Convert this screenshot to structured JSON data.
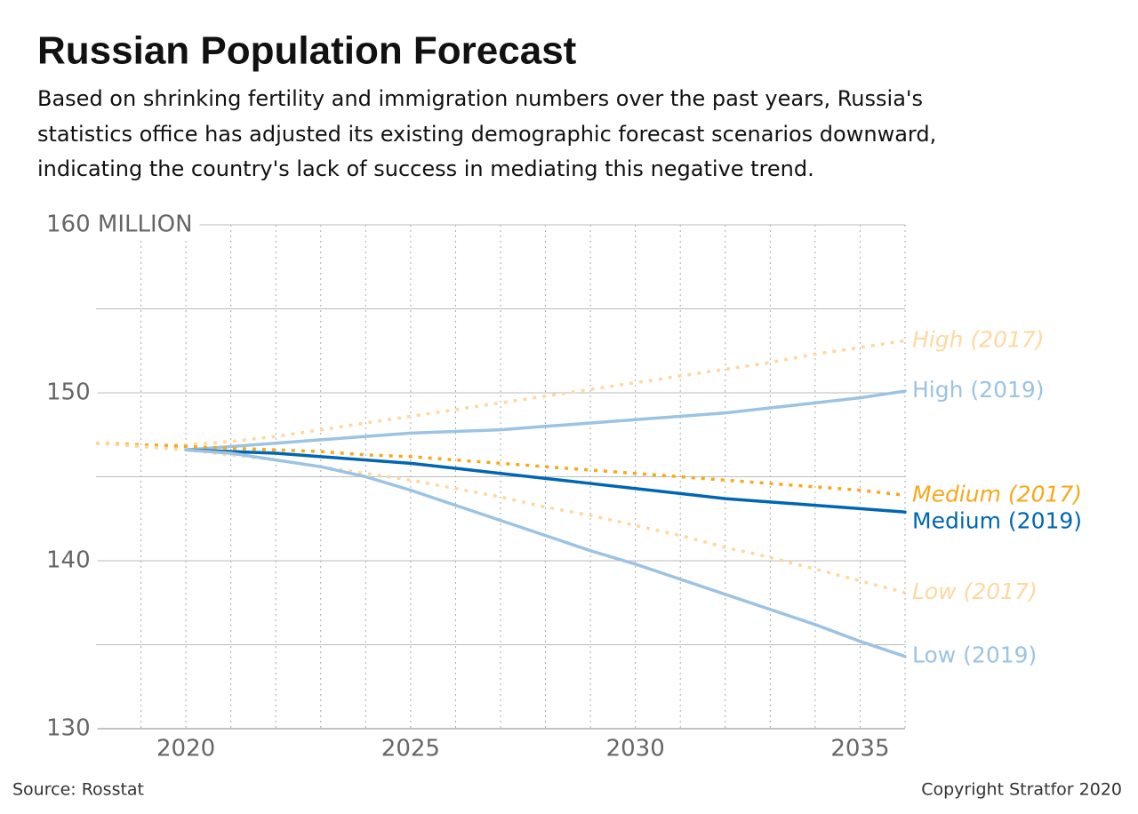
{
  "chart_data": {
    "type": "line",
    "title": "Russian Population Forecast",
    "subtitle": [
      "Based on shrinking fertility and immigration numbers over the past years, Russia's",
      "statistics office has adjusted its existing demographic forecast scenarios downward,",
      "indicating the country's lack of success in mediating this negative trend."
    ],
    "source": "Source: Rosstat",
    "copyright": "Copyright Stratfor 2020",
    "x": [
      2018,
      2019,
      2020,
      2021,
      2022,
      2023,
      2024,
      2025,
      2026,
      2027,
      2028,
      2029,
      2030,
      2031,
      2032,
      2033,
      2034,
      2035,
      2036
    ],
    "xlim": [
      2018,
      2036
    ],
    "xticks": [
      2020,
      2025,
      2030,
      2035
    ],
    "x_minor_ticks": [
      2019,
      2020,
      2021,
      2022,
      2023,
      2024,
      2025,
      2026,
      2027,
      2028,
      2029,
      2030,
      2031,
      2032,
      2033,
      2034,
      2035,
      2036
    ],
    "ylim": [
      130,
      160
    ],
    "yticks": [
      130,
      140,
      150,
      {
        "value": 160,
        "label": "160 MILLION"
      }
    ],
    "y_minor_ticks": [
      135,
      145,
      155
    ],
    "grid": true,
    "series": [
      {
        "name": "High (2017)",
        "color": "#fdd9a0",
        "dashed": true,
        "italic": true,
        "values": [
          147.0,
          146.9,
          146.9,
          147.1,
          147.4,
          147.8,
          148.2,
          148.6,
          149.0,
          149.4,
          149.8,
          150.2,
          150.6,
          151.0,
          151.4,
          151.8,
          152.3,
          152.7,
          153.1
        ]
      },
      {
        "name": "High (2019)",
        "color": "#9cc3e4",
        "dashed": false,
        "italic": false,
        "values": [
          null,
          null,
          146.6,
          146.8,
          147.0,
          147.2,
          147.4,
          147.6,
          147.7,
          147.8,
          148.0,
          148.2,
          148.4,
          148.6,
          148.8,
          149.1,
          149.4,
          149.7,
          150.1
        ]
      },
      {
        "name": "Medium (2017)",
        "color": "#f7a81b",
        "dashed": true,
        "italic": true,
        "values": [
          147.0,
          146.9,
          146.8,
          146.7,
          146.6,
          146.5,
          146.3,
          146.2,
          146.0,
          145.8,
          145.6,
          145.4,
          145.2,
          145.0,
          144.8,
          144.6,
          144.4,
          144.2,
          143.9
        ]
      },
      {
        "name": "Medium (2019)",
        "color": "#0066b3",
        "dashed": false,
        "italic": false,
        "values": [
          null,
          null,
          146.6,
          146.5,
          146.4,
          146.2,
          146.0,
          145.8,
          145.5,
          145.2,
          144.9,
          144.6,
          144.3,
          144.0,
          143.7,
          143.5,
          143.3,
          143.1,
          142.9
        ]
      },
      {
        "name": "Low (2017)",
        "color": "#fdd9a0",
        "dashed": true,
        "italic": true,
        "values": [
          147.0,
          146.8,
          146.6,
          146.3,
          146.0,
          145.6,
          145.2,
          144.8,
          144.3,
          143.8,
          143.2,
          142.7,
          142.1,
          141.5,
          140.8,
          140.2,
          139.5,
          138.8,
          138.1
        ]
      },
      {
        "name": "Low (2019)",
        "color": "#9cc3e4",
        "dashed": false,
        "italic": false,
        "values": [
          null,
          null,
          146.6,
          146.4,
          146.0,
          145.6,
          145.0,
          144.2,
          143.3,
          142.4,
          141.5,
          140.6,
          139.8,
          138.9,
          138.0,
          137.1,
          136.2,
          135.2,
          134.3
        ]
      }
    ]
  }
}
